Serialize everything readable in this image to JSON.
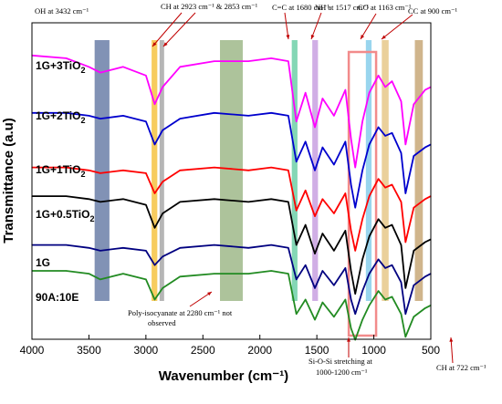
{
  "chart_data": {
    "type": "line",
    "xlabel": "Wavenumber (cm⁻¹)",
    "ylabel": "Transmittance (a.u)",
    "xlim": [
      4000,
      500
    ],
    "x_reversed": true,
    "x_ticks": [
      4000,
      3500,
      3000,
      2500,
      2000,
      1500,
      1000,
      500
    ],
    "grid": false,
    "series": [
      {
        "name": "1G+3TiO2",
        "color": "#ff00ff",
        "points": [
          [
            4000,
            0.95
          ],
          [
            3700,
            0.94
          ],
          [
            3500,
            0.91
          ],
          [
            3400,
            0.89
          ],
          [
            3200,
            0.91
          ],
          [
            3000,
            0.88
          ],
          [
            2923,
            0.78
          ],
          [
            2853,
            0.84
          ],
          [
            2700,
            0.91
          ],
          [
            2400,
            0.93
          ],
          [
            2100,
            0.93
          ],
          [
            1900,
            0.94
          ],
          [
            1750,
            0.93
          ],
          [
            1680,
            0.72
          ],
          [
            1600,
            0.82
          ],
          [
            1517,
            0.7
          ],
          [
            1450,
            0.8
          ],
          [
            1350,
            0.74
          ],
          [
            1250,
            0.83
          ],
          [
            1200,
            0.66
          ],
          [
            1163,
            0.56
          ],
          [
            1100,
            0.72
          ],
          [
            1040,
            0.82
          ],
          [
            960,
            0.88
          ],
          [
            900,
            0.84
          ],
          [
            840,
            0.86
          ],
          [
            760,
            0.79
          ],
          [
            722,
            0.64
          ],
          [
            650,
            0.78
          ],
          [
            550,
            0.83
          ],
          [
            500,
            0.84
          ]
        ]
      },
      {
        "name": "1G+2TiO2",
        "color": "#0000cd",
        "points": [
          [
            4000,
            0.75
          ],
          [
            3700,
            0.75
          ],
          [
            3500,
            0.74
          ],
          [
            3400,
            0.73
          ],
          [
            3200,
            0.74
          ],
          [
            3000,
            0.72
          ],
          [
            2923,
            0.64
          ],
          [
            2853,
            0.69
          ],
          [
            2700,
            0.73
          ],
          [
            2400,
            0.75
          ],
          [
            2100,
            0.74
          ],
          [
            1900,
            0.75
          ],
          [
            1750,
            0.74
          ],
          [
            1680,
            0.58
          ],
          [
            1600,
            0.65
          ],
          [
            1517,
            0.55
          ],
          [
            1450,
            0.63
          ],
          [
            1350,
            0.57
          ],
          [
            1250,
            0.65
          ],
          [
            1200,
            0.5
          ],
          [
            1163,
            0.42
          ],
          [
            1100,
            0.55
          ],
          [
            1040,
            0.64
          ],
          [
            960,
            0.7
          ],
          [
            900,
            0.67
          ],
          [
            840,
            0.68
          ],
          [
            760,
            0.61
          ],
          [
            722,
            0.47
          ],
          [
            650,
            0.6
          ],
          [
            550,
            0.63
          ],
          [
            500,
            0.64
          ]
        ]
      },
      {
        "name": "1G+1TiO2",
        "color": "#ff0000",
        "points": [
          [
            4000,
            0.56
          ],
          [
            3700,
            0.56
          ],
          [
            3500,
            0.55
          ],
          [
            3400,
            0.54
          ],
          [
            3200,
            0.55
          ],
          [
            3000,
            0.54
          ],
          [
            2923,
            0.47
          ],
          [
            2853,
            0.51
          ],
          [
            2700,
            0.55
          ],
          [
            2400,
            0.56
          ],
          [
            2100,
            0.55
          ],
          [
            1900,
            0.56
          ],
          [
            1750,
            0.55
          ],
          [
            1680,
            0.41
          ],
          [
            1600,
            0.48
          ],
          [
            1517,
            0.39
          ],
          [
            1450,
            0.45
          ],
          [
            1350,
            0.4
          ],
          [
            1250,
            0.47
          ],
          [
            1200,
            0.34
          ],
          [
            1163,
            0.27
          ],
          [
            1100,
            0.38
          ],
          [
            1040,
            0.46
          ],
          [
            960,
            0.52
          ],
          [
            900,
            0.49
          ],
          [
            840,
            0.5
          ],
          [
            760,
            0.44
          ],
          [
            722,
            0.3
          ],
          [
            650,
            0.42
          ],
          [
            550,
            0.45
          ],
          [
            500,
            0.46
          ]
        ]
      },
      {
        "name": "1G+0.5TiO2",
        "color": "#000000",
        "points": [
          [
            4000,
            0.46
          ],
          [
            3700,
            0.46
          ],
          [
            3500,
            0.45
          ],
          [
            3400,
            0.44
          ],
          [
            3200,
            0.45
          ],
          [
            3000,
            0.43
          ],
          [
            2923,
            0.35
          ],
          [
            2853,
            0.4
          ],
          [
            2700,
            0.44
          ],
          [
            2400,
            0.45
          ],
          [
            2100,
            0.44
          ],
          [
            1900,
            0.45
          ],
          [
            1750,
            0.44
          ],
          [
            1680,
            0.29
          ],
          [
            1600,
            0.36
          ],
          [
            1517,
            0.26
          ],
          [
            1450,
            0.33
          ],
          [
            1350,
            0.27
          ],
          [
            1250,
            0.34
          ],
          [
            1200,
            0.2
          ],
          [
            1163,
            0.12
          ],
          [
            1100,
            0.24
          ],
          [
            1040,
            0.32
          ],
          [
            960,
            0.38
          ],
          [
            900,
            0.35
          ],
          [
            840,
            0.36
          ],
          [
            760,
            0.29
          ],
          [
            722,
            0.14
          ],
          [
            650,
            0.27
          ],
          [
            550,
            0.3
          ],
          [
            500,
            0.31
          ]
        ]
      },
      {
        "name": "1G",
        "color": "#000080",
        "points": [
          [
            4000,
            0.29
          ],
          [
            3700,
            0.29
          ],
          [
            3500,
            0.28
          ],
          [
            3400,
            0.27
          ],
          [
            3200,
            0.28
          ],
          [
            3000,
            0.27
          ],
          [
            2923,
            0.22
          ],
          [
            2853,
            0.25
          ],
          [
            2700,
            0.28
          ],
          [
            2400,
            0.29
          ],
          [
            2100,
            0.28
          ],
          [
            1900,
            0.29
          ],
          [
            1750,
            0.28
          ],
          [
            1680,
            0.17
          ],
          [
            1600,
            0.22
          ],
          [
            1517,
            0.14
          ],
          [
            1450,
            0.2
          ],
          [
            1350,
            0.15
          ],
          [
            1250,
            0.21
          ],
          [
            1200,
            0.1
          ],
          [
            1163,
            0.05
          ],
          [
            1100,
            0.13
          ],
          [
            1040,
            0.19
          ],
          [
            960,
            0.24
          ],
          [
            900,
            0.21
          ],
          [
            840,
            0.22
          ],
          [
            760,
            0.16
          ],
          [
            722,
            0.05
          ],
          [
            650,
            0.15
          ],
          [
            550,
            0.18
          ],
          [
            500,
            0.19
          ]
        ]
      },
      {
        "name": "90A:10E",
        "color": "#228b22",
        "points": [
          [
            4000,
            0.2
          ],
          [
            3700,
            0.2
          ],
          [
            3500,
            0.19
          ],
          [
            3400,
            0.17
          ],
          [
            3200,
            0.19
          ],
          [
            3000,
            0.17
          ],
          [
            2923,
            0.1
          ],
          [
            2853,
            0.14
          ],
          [
            2700,
            0.18
          ],
          [
            2400,
            0.19
          ],
          [
            2100,
            0.19
          ],
          [
            1900,
            0.2
          ],
          [
            1750,
            0.19
          ],
          [
            1680,
            0.05
          ],
          [
            1600,
            0.1
          ],
          [
            1517,
            0.03
          ],
          [
            1450,
            0.09
          ],
          [
            1350,
            0.04
          ],
          [
            1250,
            0.1
          ],
          [
            1200,
            0.0
          ],
          [
            1163,
            -0.04
          ],
          [
            1100,
            0.03
          ],
          [
            1040,
            0.08
          ],
          [
            960,
            0.13
          ],
          [
            900,
            0.1
          ],
          [
            840,
            0.11
          ],
          [
            760,
            0.05
          ],
          [
            722,
            -0.03
          ],
          [
            650,
            0.04
          ],
          [
            550,
            0.07
          ],
          [
            500,
            0.08
          ]
        ]
      }
    ],
    "series_label_text": [
      "1G+3TiO",
      "1G+2TiO",
      "1G+1TiO",
      "1G+0.5TiO",
      "1G",
      "90A:10E"
    ],
    "series_label_subscript": [
      "2",
      "2",
      "2",
      "2",
      "",
      ""
    ],
    "bands": [
      {
        "from": 3450,
        "to": 3320,
        "color": "#6b7fa8"
      },
      {
        "from": 2950,
        "to": 2900,
        "color": "#f6c343"
      },
      {
        "from": 2880,
        "to": 2840,
        "color": "#a9a9a9"
      },
      {
        "from": 2350,
        "to": 2150,
        "color": "#9fb88a"
      },
      {
        "from": 1720,
        "to": 1670,
        "color": "#6fd0a8"
      },
      {
        "from": 1540,
        "to": 1490,
        "color": "#c8a0e0"
      },
      {
        "from": 1070,
        "to": 1020,
        "color": "#87ceeb"
      },
      {
        "from": 930,
        "to": 870,
        "color": "#e6c88a"
      },
      {
        "from": 640,
        "to": 570,
        "color": "#c8a878"
      }
    ],
    "box": {
      "from": 1220,
      "to": 980,
      "color": "#f28b8b"
    },
    "annotations": [
      {
        "text": "OH at 3432 cm⁻¹"
      },
      {
        "text": "CH at 2923 cm⁻¹ & 2853 cm⁻¹"
      },
      {
        "text": "C=C at 1680 cm⁻¹"
      },
      {
        "text": "NH at 1517 cm⁻¹"
      },
      {
        "text": "CO at 1163 cm⁻¹"
      },
      {
        "text": "CC at 900 cm⁻¹"
      },
      {
        "text": "Poly-isocyanate at 2280 cm⁻¹ not"
      },
      {
        "text": "observed"
      },
      {
        "text": "Si-O-Si stretching at"
      },
      {
        "text": "1000-1200 cm⁻¹"
      },
      {
        "text": "CH at 722 cm⁻¹"
      }
    ]
  }
}
